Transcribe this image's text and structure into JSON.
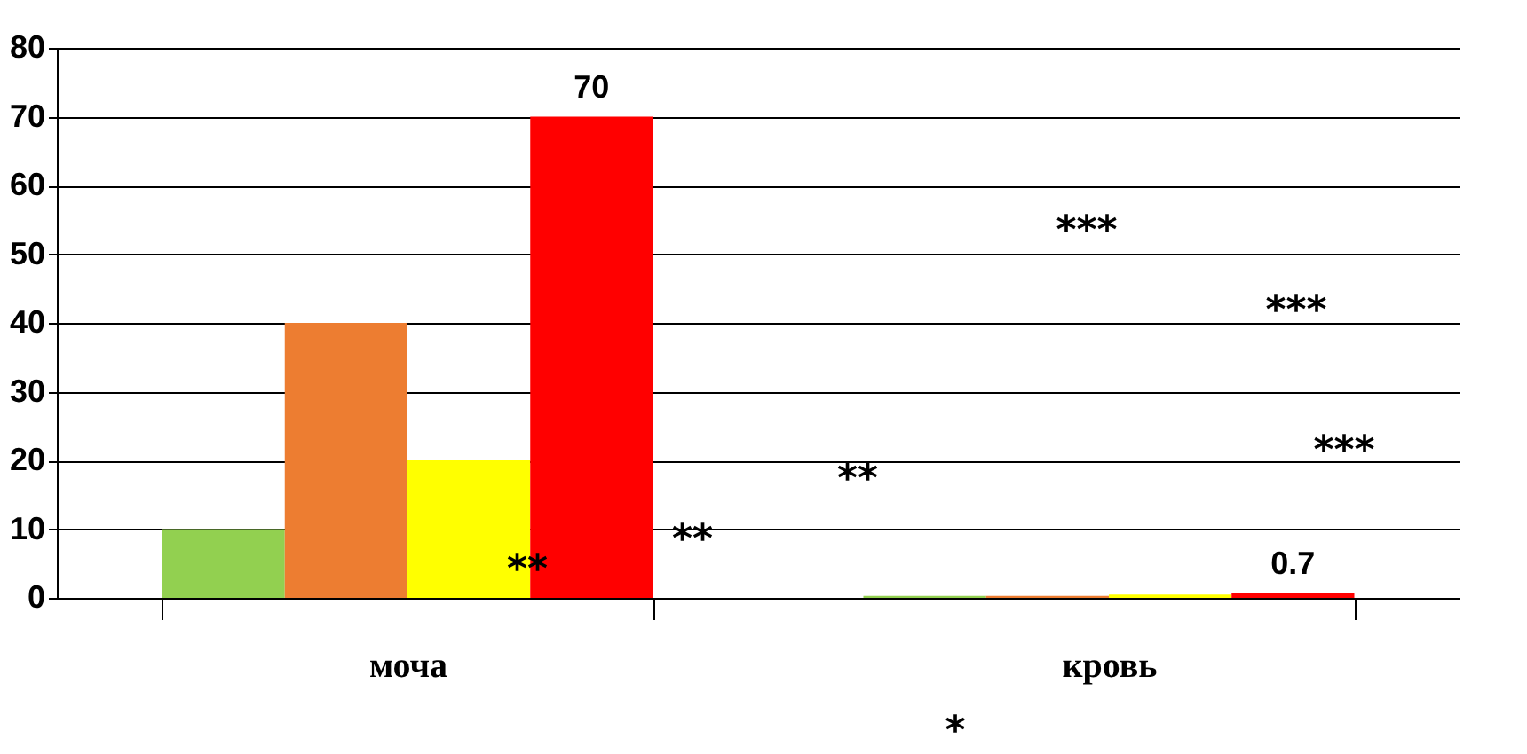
{
  "chart_data": {
    "type": "bar",
    "categories": [
      "моча",
      "кровь"
    ],
    "series": [
      {
        "color": "#92d050",
        "values": [
          10,
          0.3
        ]
      },
      {
        "color": "#ed7d31",
        "values": [
          40,
          0.3
        ]
      },
      {
        "color": "#ffff00",
        "values": [
          20,
          0.5
        ]
      },
      {
        "color": "#ff0000",
        "values": [
          70,
          0.7
        ],
        "value_labels": [
          "70",
          "0.7"
        ]
      }
    ],
    "ylim": [
      0,
      80
    ],
    "yticks": [
      0,
      10,
      20,
      30,
      40,
      50,
      60,
      70,
      80
    ],
    "grid": "y",
    "annotations": [
      "**",
      "**",
      "**",
      "***",
      "***",
      "***",
      "*"
    ]
  }
}
